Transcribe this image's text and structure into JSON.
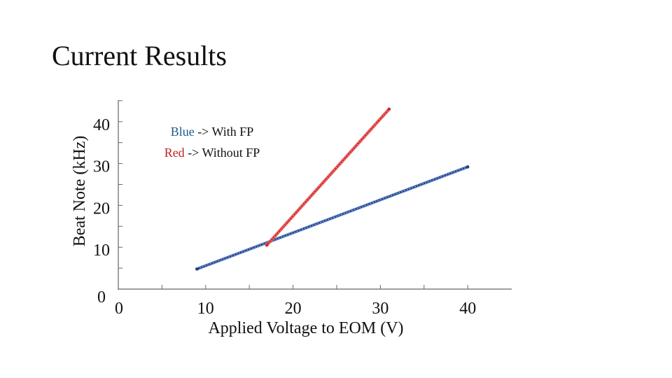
{
  "slide": {
    "title": "Current Results"
  },
  "legend": {
    "line1_color_word": "Blue",
    "line1_rest": " -> With FP",
    "line2_color_word": "Red",
    "line2_rest": " -> Without FP"
  },
  "colors": {
    "blue": "#1f3f8f",
    "blue_label": "#1a5a8a",
    "red": "#d42a2a",
    "red_glow": "#f08080",
    "axis": "#666666",
    "text": "#111111"
  },
  "chart_data": {
    "type": "line",
    "xlabel": "Applied Voltage to EOM (V)",
    "ylabel": "Beat Note (kHz)",
    "xlim": [
      0,
      45
    ],
    "ylim": [
      0,
      45
    ],
    "x_ticks": [
      "0",
      "10",
      "20",
      "30",
      "40"
    ],
    "y_ticks": [
      "0",
      "10",
      "20",
      "30",
      "40"
    ],
    "grid": false,
    "legend_position": "top-left",
    "series": [
      {
        "name": "Blue -> With FP",
        "color": "#1f3f8f",
        "x": [
          9,
          40
        ],
        "y": [
          4.8,
          29.2
        ]
      },
      {
        "name": "Red -> Without FP",
        "color": "#d42a2a",
        "x": [
          17,
          31
        ],
        "y": [
          10.5,
          43
        ]
      }
    ]
  }
}
